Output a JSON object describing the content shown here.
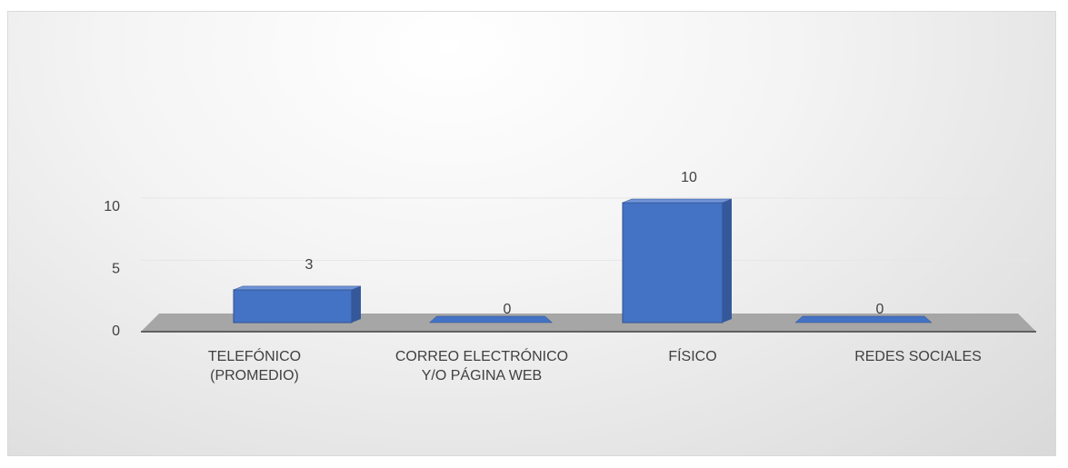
{
  "chart_data": {
    "type": "bar3d",
    "categories": [
      "TELEFÓNICO (PROMEDIO)",
      "CORREO ELECTRÓNICO Y/O PÁGINA WEB",
      "FÍSICO",
      "REDES SOCIALES"
    ],
    "values": [
      3,
      0,
      10,
      0
    ],
    "color": "#4472c4",
    "ylim": [
      0,
      10
    ],
    "yticks": [
      0,
      5,
      10
    ],
    "grid": true
  }
}
